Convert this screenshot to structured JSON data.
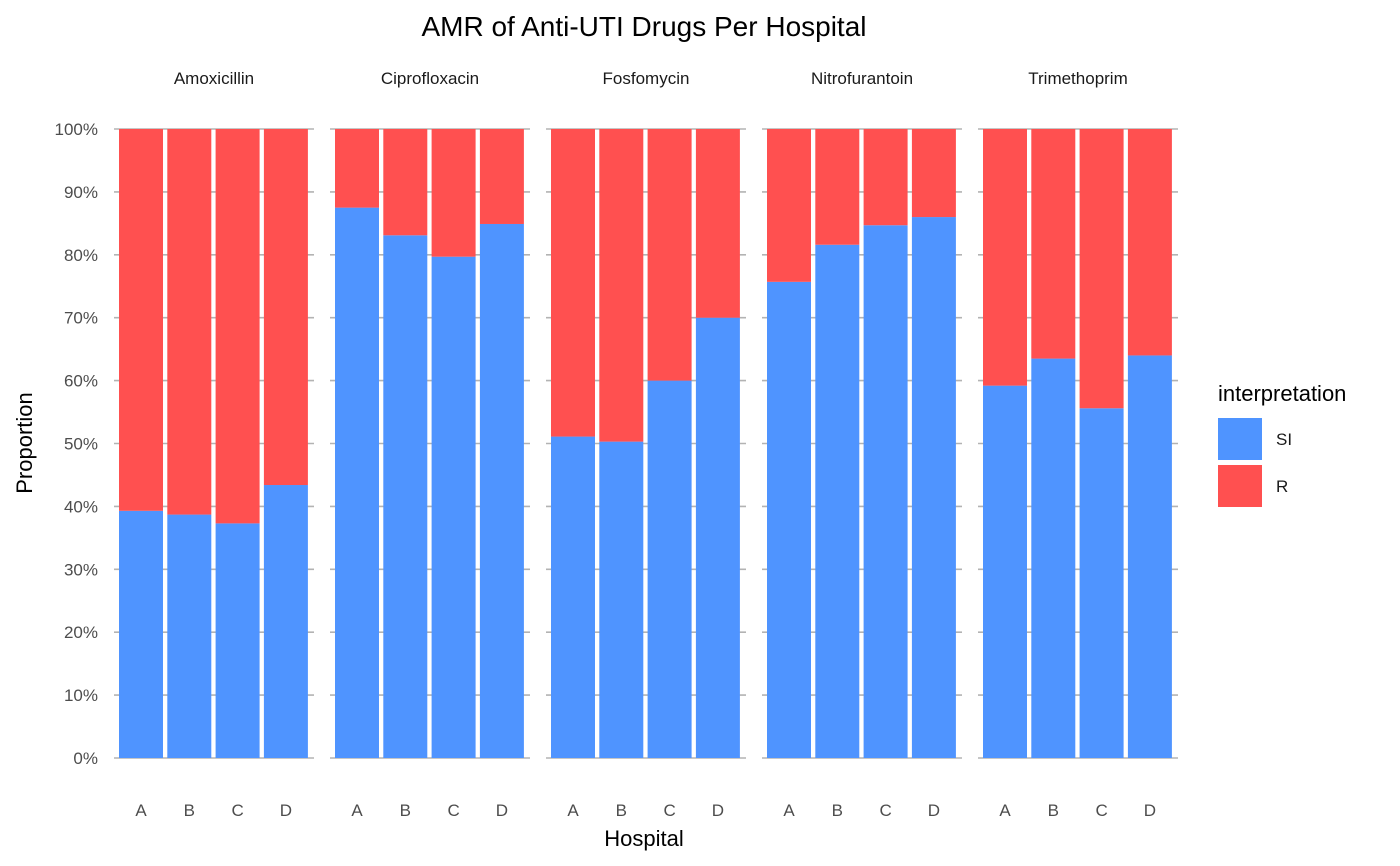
{
  "chart_data": {
    "type": "bar",
    "stacked": true,
    "title": "AMR of Anti-UTI Drugs Per Hospital",
    "xlabel": "Hospital",
    "ylabel": "Proportion",
    "ylim": [
      0,
      1
    ],
    "y_ticks": [
      "0%",
      "10%",
      "20%",
      "30%",
      "40%",
      "50%",
      "60%",
      "70%",
      "80%",
      "90%",
      "100%"
    ],
    "grid": true,
    "categories": [
      "A",
      "B",
      "C",
      "D"
    ],
    "legend": {
      "title": "interpretation",
      "position": "right",
      "items": [
        {
          "label": "SI",
          "color": "#4F94FF"
        },
        {
          "label": "R",
          "color": "#FF5050"
        }
      ]
    },
    "colors": {
      "SI": "#4F94FF",
      "R": "#FF5050"
    },
    "facets": [
      {
        "name": "Amoxicillin",
        "SI": [
          0.393,
          0.387,
          0.373,
          0.434
        ],
        "R": [
          0.607,
          0.613,
          0.627,
          0.566
        ]
      },
      {
        "name": "Ciprofloxacin",
        "SI": [
          0.875,
          0.831,
          0.797,
          0.849
        ],
        "R": [
          0.125,
          0.169,
          0.203,
          0.151
        ]
      },
      {
        "name": "Fosfomycin",
        "SI": [
          0.511,
          0.503,
          0.6,
          0.7
        ],
        "R": [
          0.489,
          0.497,
          0.4,
          0.3
        ]
      },
      {
        "name": "Nitrofurantoin",
        "SI": [
          0.757,
          0.816,
          0.847,
          0.86
        ],
        "R": [
          0.243,
          0.184,
          0.153,
          0.14
        ]
      },
      {
        "name": "Trimethoprim",
        "SI": [
          0.592,
          0.635,
          0.556,
          0.64
        ],
        "R": [
          0.408,
          0.365,
          0.444,
          0.36
        ]
      }
    ]
  }
}
